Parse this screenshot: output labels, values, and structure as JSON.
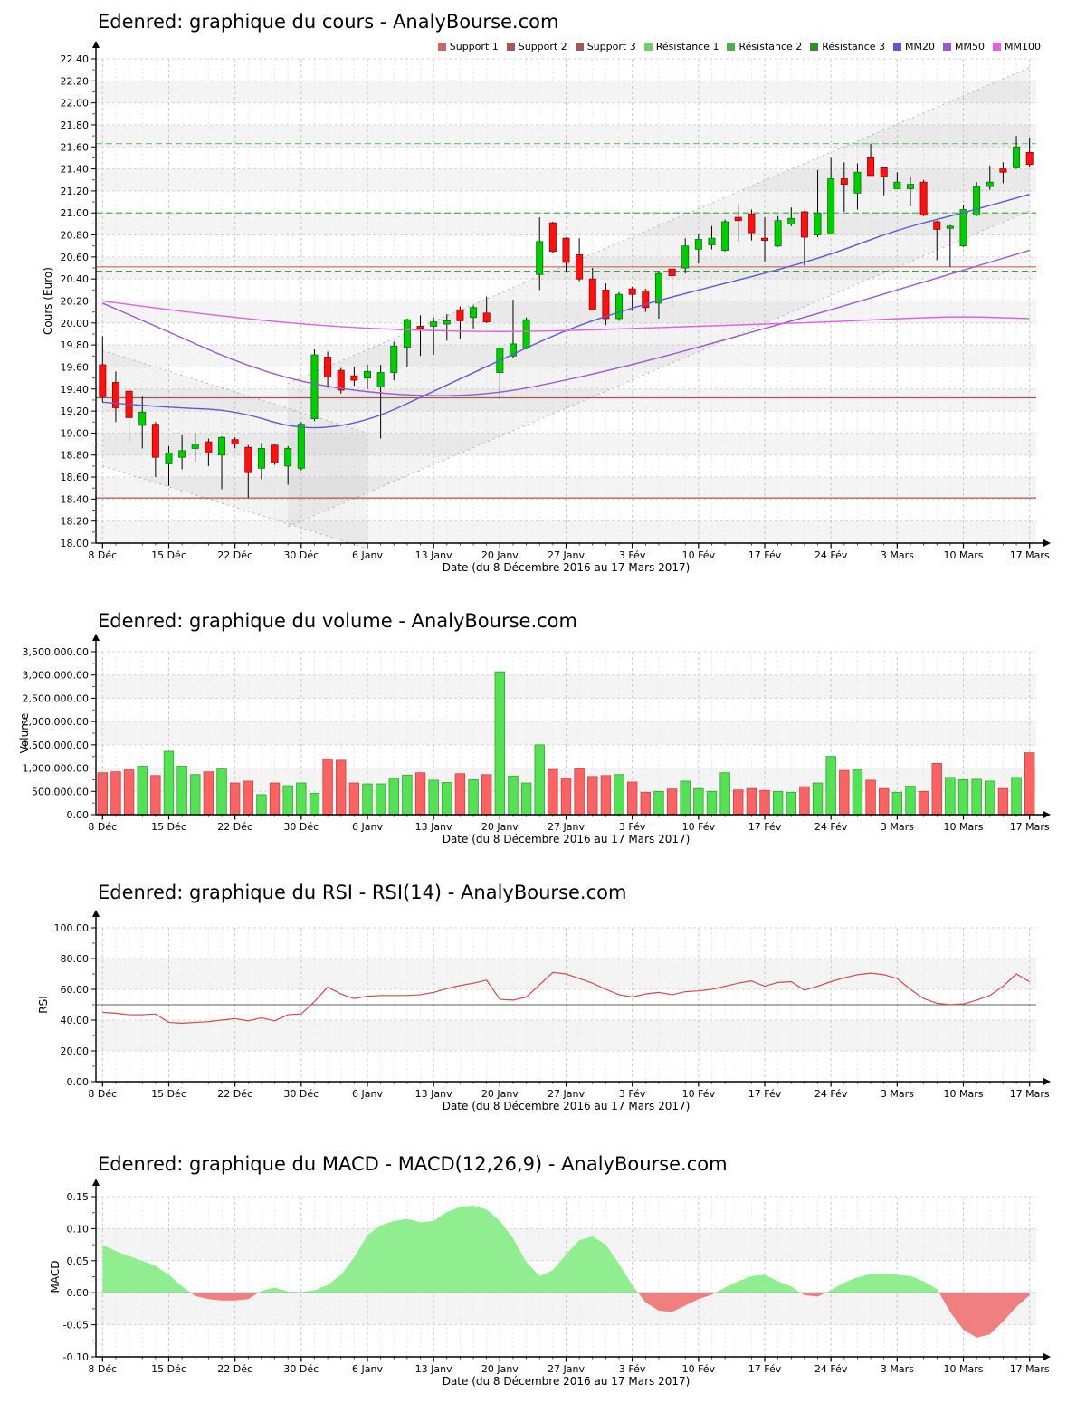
{
  "x_axis": {
    "label": "Date (du 8 Décembre 2016 au 17 Mars 2017)",
    "tick_labels": [
      "8 Déc",
      "15 Déc",
      "22 Déc",
      "30 Déc",
      "6 Janv",
      "13 Janv",
      "20 Janv",
      "27 Janv",
      "3 Fév",
      "10 Fév",
      "17 Fév",
      "24 Fév",
      "3 Mars",
      "10 Mars",
      "17 Mars"
    ]
  },
  "chart_data": [
    {
      "id": "price",
      "type": "candlestick",
      "title": "Edenred: graphique du cours - AnalyBourse.com",
      "ylabel": "Cours (Euro)",
      "ylim": [
        18.0,
        22.4
      ],
      "ytick_step": 0.2,
      "up_color": "#00CC00",
      "down_color": "#FF1111",
      "wick_color": "#000000",
      "legend": [
        {
          "label": "Support 1",
          "color": "#CC6666"
        },
        {
          "label": "Support 2",
          "color": "#AA5555"
        },
        {
          "label": "Support 3",
          "color": "#9A5B5B"
        },
        {
          "label": "Résistance 1",
          "color": "#6FCF6F"
        },
        {
          "label": "Résistance 2",
          "color": "#4FAF4F"
        },
        {
          "label": "Résistance 3",
          "color": "#2F8F2F"
        },
        {
          "label": "MM20",
          "color": "#5B5BD6"
        },
        {
          "label": "MM50",
          "color": "#9B59D0"
        },
        {
          "label": "MM100",
          "color": "#E060DE"
        }
      ],
      "support_lines": [
        {
          "label": "Support 1",
          "value": 20.51,
          "color": "#CC6666",
          "style": "solid"
        },
        {
          "label": "Support 2",
          "value": 19.32,
          "color": "#AA5555",
          "style": "solid"
        },
        {
          "label": "Support 3",
          "value": 18.41,
          "color": "#B05A50",
          "style": "solid"
        }
      ],
      "resistance_lines": [
        {
          "label": "Résistance 1",
          "value": 21.63,
          "color": "#6FCF6F",
          "style": "dashed"
        },
        {
          "label": "Résistance 2",
          "value": 21.0,
          "color": "#4FAF4F",
          "style": "dashed"
        },
        {
          "label": "Résistance 3",
          "value": 20.47,
          "color": "#2F8F2F",
          "style": "dashed"
        }
      ],
      "moving_averages": [
        {
          "label": "MM20",
          "color": "#5B5BD6",
          "tick_values": [
            19.28,
            19.23,
            19.21,
            19.02,
            19.1,
            19.38,
            19.66,
            19.94,
            20.14,
            20.3,
            20.45,
            20.62,
            20.85,
            21.0,
            21.17
          ]
        },
        {
          "label": "MM50",
          "color": "#9B59D0",
          "tick_values": [
            20.18,
            19.92,
            19.65,
            19.46,
            19.37,
            19.33,
            19.36,
            19.48,
            19.62,
            19.78,
            19.95,
            20.12,
            20.3,
            20.48,
            20.66
          ]
        },
        {
          "label": "MM100",
          "color": "#E060DE",
          "tick_values": [
            20.2,
            20.12,
            20.05,
            19.99,
            19.95,
            19.93,
            19.92,
            19.93,
            19.95,
            19.97,
            19.99,
            20.01,
            20.04,
            20.06,
            20.04
          ]
        }
      ],
      "trend_channels": [
        {
          "upper": [
            [
              0,
              19.75
            ],
            [
              20,
              19.0
            ]
          ],
          "lower": [
            [
              0,
              18.7
            ],
            [
              20,
              17.95
            ]
          ]
        },
        {
          "upper": [
            [
              14,
              19.45
            ],
            [
              70,
              22.32
            ]
          ],
          "lower": [
            [
              14,
              18.15
            ],
            [
              70,
              21.02
            ]
          ]
        }
      ],
      "candles": [
        [
          19.62,
          19.88,
          19.28,
          19.33
        ],
        [
          19.46,
          19.56,
          19.1,
          19.23
        ],
        [
          19.38,
          19.4,
          18.92,
          19.14
        ],
        [
          19.07,
          19.33,
          18.86,
          19.19
        ],
        [
          19.08,
          19.1,
          18.6,
          18.78
        ],
        [
          18.72,
          18.88,
          18.52,
          18.82
        ],
        [
          18.78,
          18.98,
          18.67,
          18.84
        ],
        [
          18.86,
          19.0,
          18.74,
          18.9
        ],
        [
          18.92,
          18.95,
          18.7,
          18.82
        ],
        [
          18.8,
          18.97,
          18.49,
          18.96
        ],
        [
          18.94,
          18.96,
          18.86,
          18.9
        ],
        [
          18.87,
          18.89,
          18.41,
          18.64
        ],
        [
          18.68,
          18.91,
          18.58,
          18.86
        ],
        [
          18.89,
          18.9,
          18.71,
          18.73
        ],
        [
          18.7,
          18.88,
          18.53,
          18.86
        ],
        [
          18.68,
          19.1,
          18.66,
          19.08
        ],
        [
          19.13,
          19.76,
          19.11,
          19.71
        ],
        [
          19.69,
          19.74,
          19.41,
          19.51
        ],
        [
          19.57,
          19.59,
          19.36,
          19.39
        ],
        [
          19.52,
          19.6,
          19.43,
          19.48
        ],
        [
          19.5,
          19.62,
          19.4,
          19.56
        ],
        [
          19.42,
          19.62,
          18.95,
          19.55
        ],
        [
          19.55,
          19.83,
          19.48,
          19.79
        ],
        [
          19.78,
          20.04,
          19.6,
          20.03
        ],
        [
          19.97,
          20.07,
          19.7,
          19.95
        ],
        [
          19.97,
          20.05,
          19.71,
          20.01
        ],
        [
          19.99,
          20.08,
          19.84,
          20.02
        ],
        [
          20.12,
          20.15,
          19.86,
          20.02
        ],
        [
          20.05,
          20.16,
          19.95,
          20.14
        ],
        [
          20.09,
          20.24,
          20.0,
          20.01
        ],
        [
          19.55,
          19.78,
          19.31,
          19.77
        ],
        [
          19.7,
          20.21,
          19.68,
          19.81
        ],
        [
          19.77,
          20.05,
          19.76,
          20.03
        ],
        [
          20.44,
          20.96,
          20.3,
          20.74
        ],
        [
          20.91,
          20.92,
          20.64,
          20.65
        ],
        [
          20.77,
          20.78,
          20.47,
          20.55
        ],
        [
          20.62,
          20.77,
          20.38,
          20.4
        ],
        [
          20.4,
          20.5,
          20.12,
          20.12
        ],
        [
          20.3,
          20.36,
          19.98,
          20.04
        ],
        [
          20.04,
          20.28,
          20.02,
          20.26
        ],
        [
          20.31,
          20.33,
          20.11,
          20.26
        ],
        [
          20.29,
          20.31,
          20.1,
          20.14
        ],
        [
          20.18,
          20.47,
          20.04,
          20.45
        ],
        [
          20.49,
          20.5,
          20.14,
          20.43
        ],
        [
          20.5,
          20.77,
          20.45,
          20.7
        ],
        [
          20.67,
          20.81,
          20.54,
          20.76
        ],
        [
          20.71,
          20.88,
          20.67,
          20.77
        ],
        [
          20.66,
          20.94,
          20.65,
          20.92
        ],
        [
          20.96,
          21.08,
          20.74,
          20.93
        ],
        [
          20.99,
          21.03,
          20.75,
          20.82
        ],
        [
          20.77,
          20.96,
          20.56,
          20.75
        ],
        [
          20.7,
          20.97,
          20.69,
          20.93
        ],
        [
          20.9,
          21.05,
          20.88,
          20.95
        ],
        [
          21.01,
          21.02,
          20.52,
          20.78
        ],
        [
          20.8,
          21.39,
          20.78,
          21.0
        ],
        [
          20.81,
          21.5,
          20.81,
          21.31
        ],
        [
          21.31,
          21.46,
          21.01,
          21.26
        ],
        [
          21.18,
          21.45,
          21.03,
          21.37
        ],
        [
          21.5,
          21.63,
          21.34,
          21.34
        ],
        [
          21.41,
          21.42,
          21.16,
          21.33
        ],
        [
          21.22,
          21.37,
          21.22,
          21.28
        ],
        [
          21.22,
          21.33,
          21.06,
          21.26
        ],
        [
          21.28,
          21.3,
          20.97,
          20.98
        ],
        [
          20.92,
          20.93,
          20.57,
          20.85
        ],
        [
          20.86,
          20.89,
          20.51,
          20.88
        ],
        [
          20.7,
          21.07,
          20.69,
          21.03
        ],
        [
          20.98,
          21.28,
          20.97,
          21.24
        ],
        [
          21.24,
          21.43,
          21.21,
          21.28
        ],
        [
          21.4,
          21.46,
          21.27,
          21.37
        ],
        [
          21.41,
          21.7,
          21.4,
          21.6
        ],
        [
          21.55,
          21.68,
          21.42,
          21.44
        ]
      ]
    },
    {
      "id": "volume",
      "type": "bar",
      "title": "Edenred: graphique du volume - AnalyBourse.com",
      "ylabel": "Volume",
      "ylim": [
        0,
        3500000
      ],
      "ytick_step": 500000,
      "up_color": "#55E055",
      "up_border": "#2FA52F",
      "down_color": "#F86464",
      "down_border": "#C84444",
      "values": [
        900000,
        920000,
        960000,
        1040000,
        840000,
        1360000,
        1040000,
        860000,
        920000,
        980000,
        680000,
        720000,
        430000,
        680000,
        620000,
        680000,
        460000,
        1200000,
        1170000,
        680000,
        660000,
        660000,
        780000,
        850000,
        900000,
        740000,
        690000,
        880000,
        750000,
        860000,
        3070000,
        830000,
        680000,
        1500000,
        970000,
        780000,
        990000,
        820000,
        840000,
        860000,
        700000,
        480000,
        500000,
        550000,
        720000,
        560000,
        500000,
        900000,
        530000,
        560000,
        520000,
        500000,
        480000,
        600000,
        680000,
        1250000,
        950000,
        960000,
        740000,
        560000,
        480000,
        610000,
        500000,
        1100000,
        800000,
        750000,
        760000,
        720000,
        560000,
        800000,
        1330000
      ]
    },
    {
      "id": "rsi",
      "type": "line",
      "title": "Edenred: graphique du RSI - RSI(14) - AnalyBourse.com",
      "ylabel": "RSI",
      "ylim": [
        0,
        100
      ],
      "ytick_step": 20,
      "line_color": "#D24A4A",
      "reference_line": 50,
      "reference_color": "#606060",
      "values": [
        45,
        44.5,
        43.5,
        43.5,
        44,
        38.5,
        38,
        38.5,
        39,
        40,
        41,
        39.5,
        41.5,
        39.5,
        43.5,
        44,
        52,
        61.5,
        57,
        54,
        55.5,
        56,
        56,
        56,
        56.5,
        58,
        60.5,
        62.5,
        64,
        66,
        53.5,
        53,
        55,
        63,
        71,
        70,
        67,
        64,
        60,
        56.5,
        55,
        57,
        58,
        56.5,
        58.5,
        59,
        60,
        62,
        64,
        65.5,
        62,
        64.5,
        65,
        59.5,
        62,
        65,
        67.5,
        69.5,
        70.5,
        69.5,
        67,
        60,
        54,
        51,
        50,
        50.5,
        53,
        56,
        62,
        70,
        65
      ]
    },
    {
      "id": "macd",
      "type": "area",
      "title": "Edenred: graphique du MACD - MACD(12,26,9) - AnalyBourse.com",
      "ylabel": "MACD",
      "ylim": [
        -0.1,
        0.15
      ],
      "ytick_step": 0.05,
      "positive_color": "#90EE90",
      "negative_color": "#F08080",
      "values": [
        0.075,
        0.065,
        0.057,
        0.05,
        0.042,
        0.028,
        0.01,
        -0.005,
        -0.01,
        -0.012,
        -0.012,
        -0.01,
        0.003,
        0.008,
        0.002,
        0.001,
        0.004,
        0.012,
        0.028,
        0.055,
        0.09,
        0.105,
        0.112,
        0.115,
        0.11,
        0.112,
        0.126,
        0.134,
        0.136,
        0.13,
        0.112,
        0.085,
        0.048,
        0.026,
        0.035,
        0.06,
        0.082,
        0.088,
        0.075,
        0.045,
        0.012,
        -0.015,
        -0.028,
        -0.03,
        -0.02,
        -0.01,
        -0.003,
        0.008,
        0.018,
        0.026,
        0.028,
        0.018,
        0.01,
        -0.004,
        -0.006,
        0.004,
        0.016,
        0.024,
        0.029,
        0.03,
        0.028,
        0.026,
        0.018,
        0.006,
        -0.03,
        -0.058,
        -0.07,
        -0.065,
        -0.045,
        -0.022,
        -0.004
      ]
    }
  ]
}
